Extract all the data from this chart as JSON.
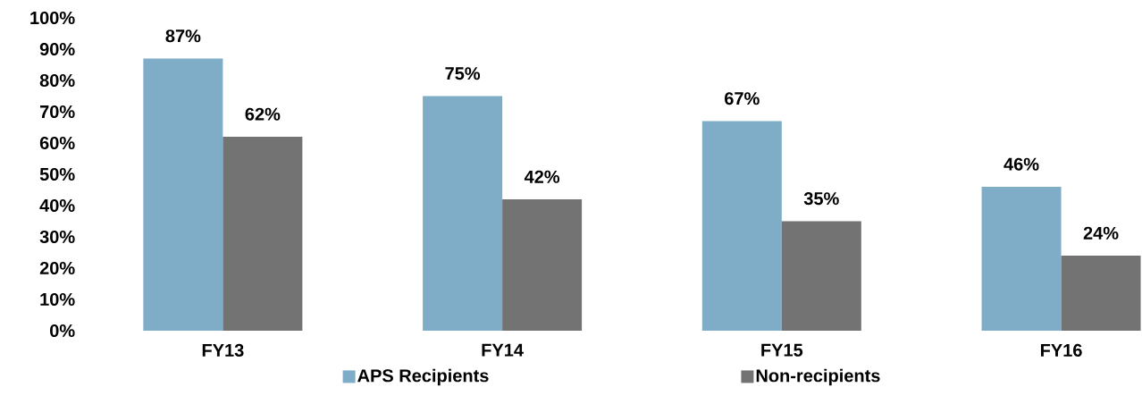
{
  "chart_data": {
    "type": "bar",
    "categories": [
      "FY13",
      "FY14",
      "FY15",
      "FY16"
    ],
    "series": [
      {
        "name": "APS Recipients",
        "color": "#7facc6",
        "values": [
          87,
          75,
          67,
          46
        ],
        "value_labels": [
          "87%",
          "75%",
          "67%",
          "46%"
        ]
      },
      {
        "name": "Non-recipients",
        "color": "#737373",
        "values": [
          62,
          42,
          35,
          24
        ],
        "value_labels": [
          "62%",
          "42%",
          "35%",
          "24%"
        ]
      }
    ],
    "ylim": [
      0,
      100
    ],
    "yticks": [
      {
        "value": 0,
        "label": "0%"
      },
      {
        "value": 10,
        "label": "10%"
      },
      {
        "value": 20,
        "label": "20%"
      },
      {
        "value": 30,
        "label": "30%"
      },
      {
        "value": 40,
        "label": "40%"
      },
      {
        "value": 50,
        "label": "50%"
      },
      {
        "value": 60,
        "label": "60%"
      },
      {
        "value": 70,
        "label": "70%"
      },
      {
        "value": 80,
        "label": "80%"
      },
      {
        "value": 90,
        "label": "90%"
      },
      {
        "value": 100,
        "label": "100%"
      }
    ],
    "grid": false,
    "legend": "bottom"
  }
}
